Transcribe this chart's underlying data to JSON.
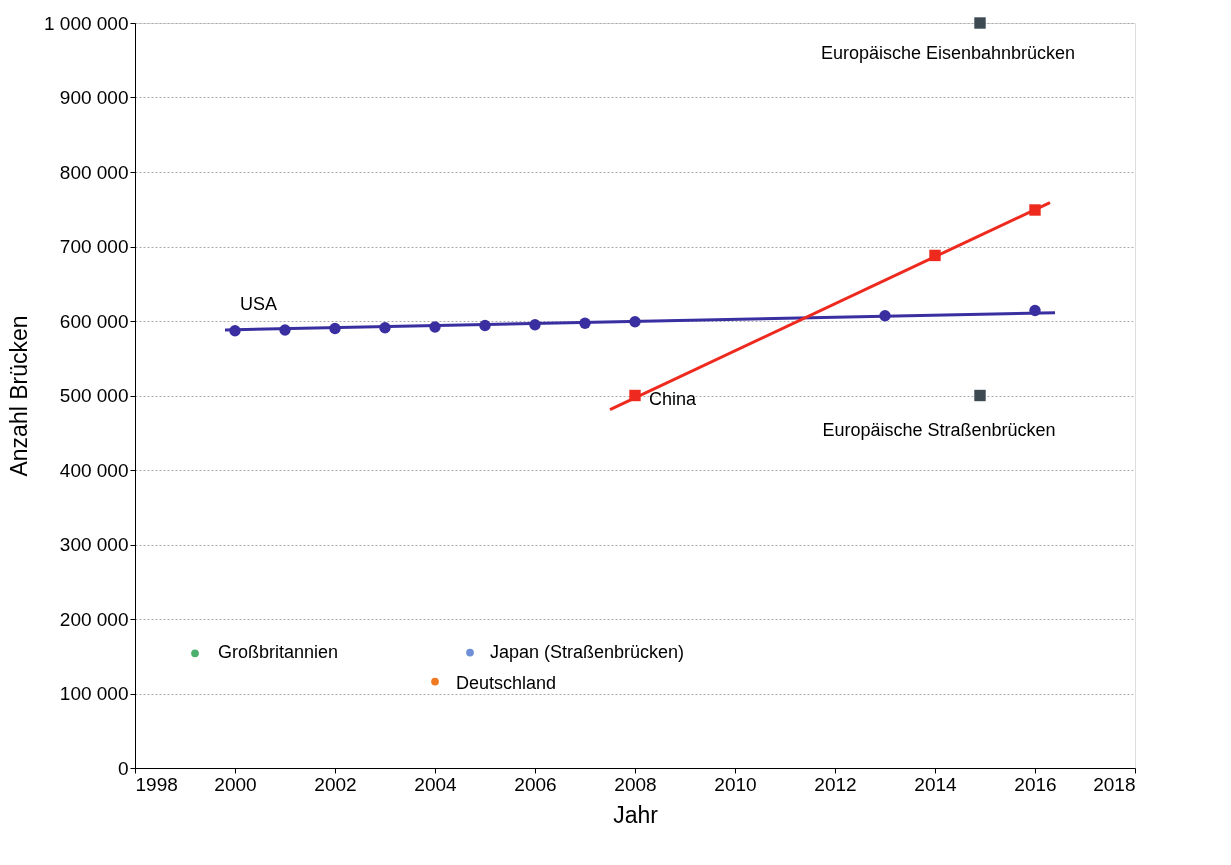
{
  "chart_data": {
    "type": "scatter",
    "xlabel": "Jahr",
    "ylabel": "Anzahl Brücken",
    "xlim": [
      1998,
      2018
    ],
    "xticks": [
      1998,
      2000,
      2002,
      2004,
      2006,
      2008,
      2010,
      2012,
      2014,
      2016,
      2018
    ],
    "ylim": [
      0,
      1000000
    ],
    "yticks": [
      {
        "value": 0,
        "label": "0"
      },
      {
        "value": 100000,
        "label": "100 000"
      },
      {
        "value": 200000,
        "label": "200 000"
      },
      {
        "value": 300000,
        "label": "300 000"
      },
      {
        "value": 400000,
        "label": "400 000"
      },
      {
        "value": 500000,
        "label": "500 000"
      },
      {
        "value": 600000,
        "label": "600 000"
      },
      {
        "value": 700000,
        "label": "700 000"
      },
      {
        "value": 800000,
        "label": "800 000"
      },
      {
        "value": 900000,
        "label": "900 000"
      },
      {
        "value": 1000000,
        "label": "1 000 000"
      }
    ],
    "grid": "y",
    "line_style": "solid",
    "series": [
      {
        "name": "USA",
        "marker": "circle",
        "color": "#3a2fa0",
        "x": [
          2000,
          2001,
          2002,
          2003,
          2004,
          2005,
          2006,
          2007,
          2008,
          2013,
          2016
        ],
        "values": [
          587000,
          588000,
          590000,
          591000,
          592000,
          594000,
          595000,
          597000,
          599000,
          607000,
          614000
        ]
      },
      {
        "type": "line",
        "marker": "none",
        "color": "#3a2fa0",
        "x": [
          1999.8,
          2016.4
        ],
        "values": [
          588000,
          611000
        ]
      },
      {
        "name": "China",
        "marker": "square",
        "color": "#ee2a1f",
        "x": [
          2008,
          2014,
          2016
        ],
        "values": [
          500000,
          688000,
          749000
        ]
      },
      {
        "type": "line",
        "marker": "none",
        "color": "#ee2a1f",
        "x": [
          2007.5,
          2016.3
        ],
        "values": [
          481000,
          759000
        ]
      },
      {
        "name": "Europäische Eisenbahnbrücken",
        "marker": "square",
        "color": "#3d4a52",
        "x": [
          2014.9
        ],
        "values": [
          1000000
        ]
      },
      {
        "name": "Europäische Straßenbrücken",
        "marker": "square",
        "color": "#3d4a52",
        "x": [
          2014.9
        ],
        "values": [
          500000
        ]
      },
      {
        "name": "Großbritannien",
        "marker": "circle",
        "color": "#4caf6e",
        "x": [
          1999.2
        ],
        "values": [
          154000
        ]
      },
      {
        "name": "Japan (Straßenbrücken)",
        "marker": "circle",
        "color": "#6f8fd6",
        "x": [
          2004.7
        ],
        "values": [
          155000
        ]
      },
      {
        "name": "Deutschland",
        "marker": "circle",
        "color": "#f07a22",
        "x": [
          2004
        ],
        "values": [
          116000
        ]
      }
    ]
  }
}
